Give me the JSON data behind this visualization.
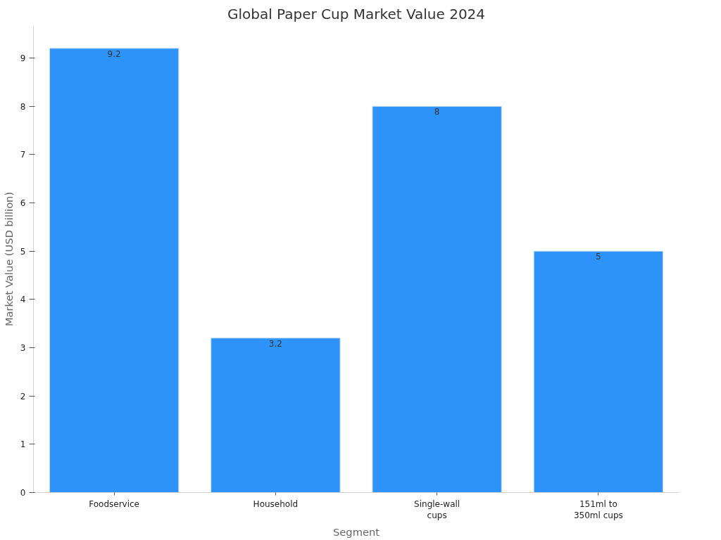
{
  "chart_data": {
    "type": "bar",
    "title": "Global Paper Cup Market Value 2024",
    "xlabel": "Segment",
    "ylabel": "Market Value (USD billion)",
    "categories": [
      "Foodservice",
      "Household",
      "Single-wall\ncups",
      "151ml to\n350ml cups"
    ],
    "values": [
      9.2,
      3.2,
      8,
      5
    ],
    "color": "#2e93f9",
    "ylim": [
      0,
      9.67
    ],
    "yticks": [
      0,
      1,
      2,
      3,
      4,
      5,
      6,
      7,
      8,
      9
    ],
    "data_labels": true,
    "grid": false
  }
}
